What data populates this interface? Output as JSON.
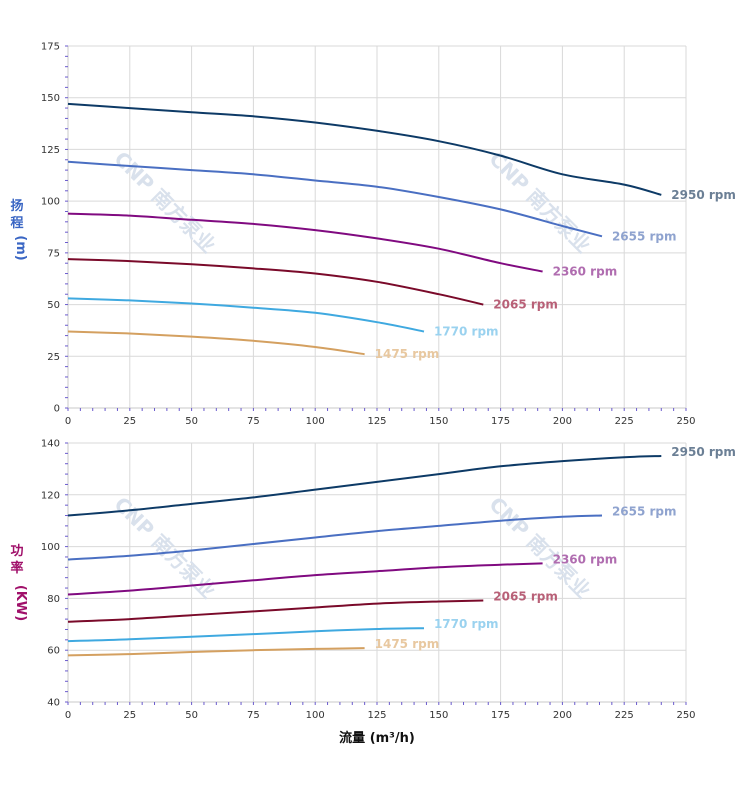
{
  "chart_data": [
    {
      "type": "line",
      "ylabel_chars": [
        "扬",
        "程"
      ],
      "yunit": "(m)",
      "xlim": [
        0,
        250
      ],
      "ylim": [
        0,
        175
      ],
      "xticks": [
        0,
        25,
        50,
        75,
        100,
        125,
        150,
        175,
        200,
        225,
        250
      ],
      "yticks": [
        0,
        25,
        50,
        75,
        100,
        125,
        150,
        175
      ],
      "grid": true,
      "series": [
        {
          "name": "2950 rpm",
          "color": "#0d3a66",
          "label_color": "#6b7f95",
          "x": [
            0,
            25,
            50,
            75,
            100,
            125,
            150,
            175,
            200,
            225,
            240
          ],
          "y": [
            147,
            145,
            143,
            141,
            138,
            134,
            129,
            122,
            113,
            108,
            103
          ]
        },
        {
          "name": "2655 rpm",
          "color": "#4a6fc2",
          "label_color": "#8fa3cf",
          "x": [
            0,
            25,
            50,
            75,
            100,
            125,
            150,
            175,
            200,
            216
          ],
          "y": [
            119,
            117,
            115,
            113,
            110,
            107,
            102,
            96,
            88,
            83
          ]
        },
        {
          "name": "2360 rpm",
          "color": "#800a80",
          "label_color": "#b06db0",
          "x": [
            0,
            25,
            50,
            75,
            100,
            125,
            150,
            175,
            192
          ],
          "y": [
            94,
            93,
            91,
            89,
            86,
            82,
            77,
            70,
            66
          ]
        },
        {
          "name": "2065 rpm",
          "color": "#7a0a2a",
          "label_color": "#b86077",
          "x": [
            0,
            25,
            50,
            75,
            100,
            125,
            150,
            168
          ],
          "y": [
            72,
            71,
            69.5,
            67.5,
            65,
            61,
            55,
            50
          ]
        },
        {
          "name": "1770 rpm",
          "color": "#3fa9e0",
          "label_color": "#9ad2ef",
          "x": [
            0,
            25,
            50,
            75,
            100,
            125,
            144
          ],
          "y": [
            53,
            52,
            50.5,
            48.5,
            46,
            41.5,
            37
          ]
        },
        {
          "name": "1475 rpm",
          "color": "#d4a060",
          "label_color": "#e8c8a0",
          "x": [
            0,
            25,
            50,
            75,
            100,
            120
          ],
          "y": [
            37,
            36,
            34.5,
            32.5,
            29.5,
            26
          ]
        }
      ]
    },
    {
      "type": "line",
      "ylabel_chars": [
        "功",
        "率"
      ],
      "yunit": "(KW)",
      "xlabel": "流量 (m³/h)",
      "xlim": [
        0,
        250
      ],
      "ylim": [
        40,
        140
      ],
      "xticks": [
        0,
        25,
        50,
        75,
        100,
        125,
        150,
        175,
        200,
        225,
        250
      ],
      "yticks": [
        40,
        60,
        80,
        100,
        120,
        140
      ],
      "grid": true,
      "series": [
        {
          "name": "2950 rpm",
          "color": "#0d3a66",
          "label_color": "#6b7f95",
          "x": [
            0,
            25,
            50,
            75,
            100,
            125,
            150,
            175,
            200,
            225,
            240
          ],
          "y": [
            112,
            114,
            116.5,
            119,
            122,
            125,
            128,
            131,
            133,
            134.5,
            135
          ]
        },
        {
          "name": "2655 rpm",
          "color": "#4a6fc2",
          "label_color": "#8fa3cf",
          "x": [
            0,
            25,
            50,
            75,
            100,
            125,
            150,
            175,
            200,
            216
          ],
          "y": [
            95,
            96.5,
            98.5,
            101,
            103.5,
            106,
            108,
            110,
            111.5,
            112
          ]
        },
        {
          "name": "2360 rpm",
          "color": "#800a80",
          "label_color": "#b06db0",
          "x": [
            0,
            25,
            50,
            75,
            100,
            125,
            150,
            175,
            192
          ],
          "y": [
            81.5,
            83,
            85,
            87,
            89,
            90.5,
            92,
            93,
            93.5
          ]
        },
        {
          "name": "2065 rpm",
          "color": "#7a0a2a",
          "label_color": "#b86077",
          "x": [
            0,
            25,
            50,
            75,
            100,
            125,
            150,
            168
          ],
          "y": [
            71,
            72,
            73.5,
            75,
            76.5,
            78,
            78.8,
            79.2
          ]
        },
        {
          "name": "1770 rpm",
          "color": "#3fa9e0",
          "label_color": "#9ad2ef",
          "x": [
            0,
            25,
            50,
            75,
            100,
            125,
            144
          ],
          "y": [
            63.5,
            64.2,
            65.2,
            66.2,
            67.3,
            68.2,
            68.5
          ]
        },
        {
          "name": "1475 rpm",
          "color": "#d4a060",
          "label_color": "#e8c8a0",
          "x": [
            0,
            25,
            50,
            75,
            100,
            120
          ],
          "y": [
            58,
            58.5,
            59.3,
            60,
            60.5,
            60.8
          ]
        }
      ]
    }
  ],
  "watermark": "CNP 南方泵业"
}
